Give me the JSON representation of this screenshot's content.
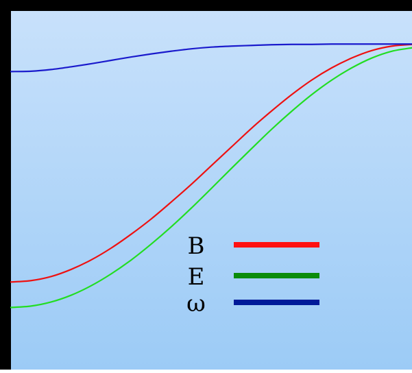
{
  "chart_data": {
    "type": "line",
    "title": "",
    "xlabel": "",
    "ylabel": "",
    "xlim": [
      0,
      1
    ],
    "ylim": [
      0,
      1
    ],
    "grid": false,
    "legend_placement": "lower-right",
    "background_gradient": [
      "#c8e1fb",
      "#9ccbf6"
    ],
    "series": [
      {
        "name": "B",
        "color": "#ee1111",
        "legend_color": "#ff1111",
        "x": [
          0.0,
          0.05,
          0.1,
          0.15,
          0.2,
          0.25,
          0.3,
          0.35,
          0.4,
          0.45,
          0.5,
          0.55,
          0.6,
          0.65,
          0.7,
          0.75,
          0.8,
          0.85,
          0.9,
          0.95,
          1.0
        ],
        "y": [
          0.25,
          0.254,
          0.266,
          0.287,
          0.315,
          0.35,
          0.391,
          0.436,
          0.486,
          0.538,
          0.593,
          0.648,
          0.703,
          0.754,
          0.802,
          0.845,
          0.881,
          0.91,
          0.932,
          0.945,
          0.95
        ]
      },
      {
        "name": "E",
        "color": "#22dd22",
        "legend_color": "#0a8c0a",
        "x": [
          0.0,
          0.05,
          0.1,
          0.15,
          0.2,
          0.25,
          0.3,
          0.35,
          0.4,
          0.45,
          0.5,
          0.55,
          0.6,
          0.65,
          0.7,
          0.75,
          0.8,
          0.85,
          0.9,
          0.95,
          1.0
        ],
        "y": [
          0.175,
          0.179,
          0.191,
          0.211,
          0.239,
          0.274,
          0.315,
          0.362,
          0.413,
          0.468,
          0.526,
          0.585,
          0.643,
          0.7,
          0.753,
          0.802,
          0.845,
          0.881,
          0.91,
          0.93,
          0.94
        ]
      },
      {
        "name": "ω",
        "color": "#1a1acc",
        "legend_color": "#001a99",
        "x": [
          0.0,
          0.05,
          0.1,
          0.15,
          0.2,
          0.25,
          0.3,
          0.35,
          0.4,
          0.45,
          0.5,
          0.55,
          0.6,
          0.65,
          0.7,
          0.75,
          0.8,
          0.85,
          0.9,
          0.95,
          1.0
        ],
        "y": [
          0.87,
          0.871,
          0.876,
          0.884,
          0.893,
          0.903,
          0.913,
          0.922,
          0.93,
          0.937,
          0.942,
          0.945,
          0.947,
          0.949,
          0.95,
          0.95,
          0.951,
          0.951,
          0.951,
          0.951,
          0.951
        ]
      }
    ]
  }
}
